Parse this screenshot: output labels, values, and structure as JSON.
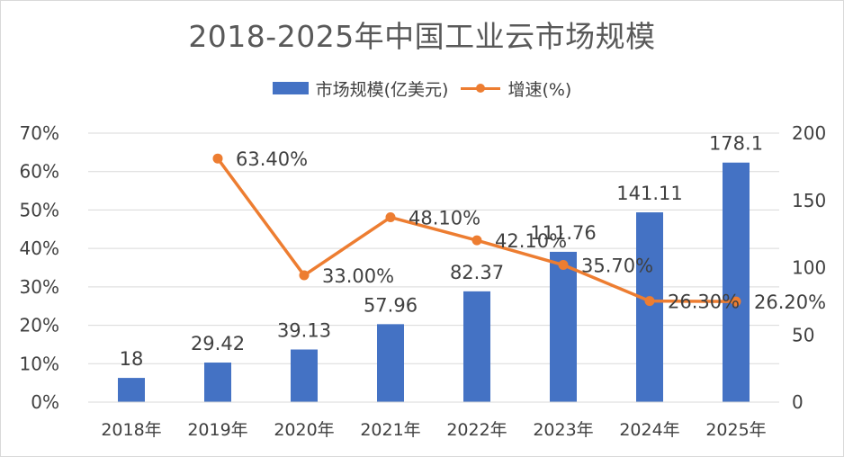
{
  "chart_data": {
    "type": "bar",
    "title": "2018-2025年中国工业云市场规模",
    "categories": [
      "2018年",
      "2019年",
      "2020年",
      "2021年",
      "2022年",
      "2023年",
      "2024年",
      "2025年"
    ],
    "series": [
      {
        "name": "市场规模(亿美元)",
        "type": "bar",
        "axis": "right",
        "values": [
          18,
          29.42,
          39.13,
          57.96,
          82.37,
          111.76,
          141.11,
          178.1
        ],
        "labels": [
          "18",
          "29.42",
          "39.13",
          "57.96",
          "82.37",
          "111.76",
          "141.11",
          "178.1"
        ],
        "color": "#4472c4"
      },
      {
        "name": "增速(%)",
        "type": "line",
        "axis": "left",
        "values": [
          null,
          63.4,
          33.0,
          48.1,
          42.1,
          35.7,
          26.3,
          26.2
        ],
        "labels": [
          "",
          "63.40%",
          "33.00%",
          "48.10%",
          "42.10%",
          "35.70%",
          "26.30%",
          "26.20%"
        ],
        "color": "#ed7d31"
      }
    ],
    "y_left": {
      "ylim": [
        0,
        70
      ],
      "ticks": [
        0,
        10,
        20,
        30,
        40,
        50,
        60,
        70
      ],
      "tick_labels": [
        "0%",
        "10%",
        "20%",
        "30%",
        "40%",
        "50%",
        "60%",
        "70%"
      ]
    },
    "y_right": {
      "ylim": [
        0,
        200
      ],
      "ticks": [
        0,
        50,
        100,
        150,
        200
      ],
      "tick_labels": [
        "0",
        "50",
        "100",
        "150",
        "200"
      ]
    },
    "grid": true,
    "legend_position": "top-center",
    "xlabel": "",
    "ylabel": ""
  }
}
